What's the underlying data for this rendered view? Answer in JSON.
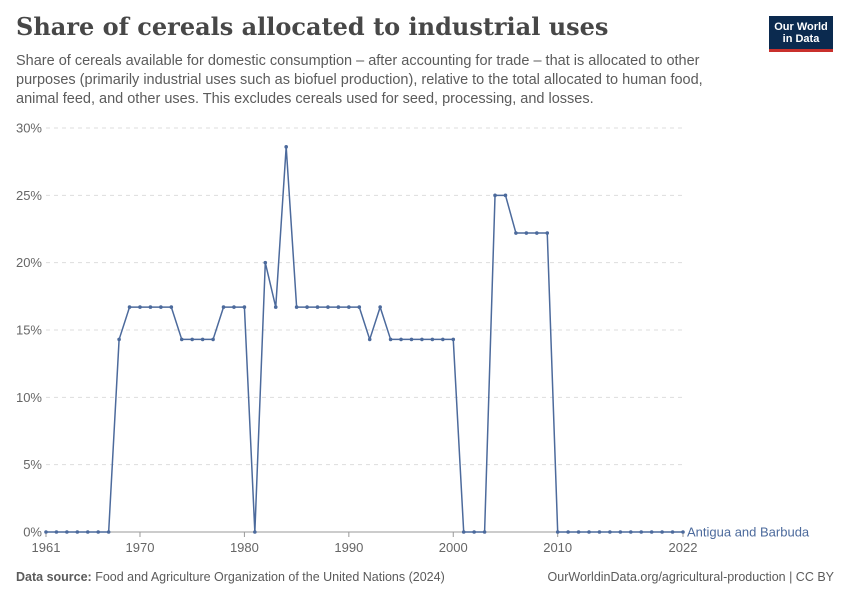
{
  "header": {
    "title": "Share of cereals allocated to industrial uses",
    "subtitle": "Share of cereals available for domestic consumption – after accounting for trade – that is allocated to other purposes (primarily industrial uses such as biofuel production), relative to the total allocated to human food, animal feed, and other uses. This excludes cereals used for seed, processing, and losses.",
    "logo_line1": "Our World",
    "logo_line2": "in Data"
  },
  "footer": {
    "source_label": "Data source:",
    "source_text": "Food and Agriculture Organization of the United Nations (2024)",
    "link_text": "OurWorldinData.org/agricultural-production | CC BY"
  },
  "colors": {
    "series": "#4c6a9c",
    "grid": "#dddddd",
    "logo_bg": "#0b2a4f",
    "logo_accent": "#c9302c"
  },
  "chart_data": {
    "type": "line",
    "title": "Share of cereals allocated to industrial uses",
    "xlabel": "",
    "ylabel": "",
    "xlim": [
      1961,
      2022
    ],
    "ylim": [
      0,
      30
    ],
    "yticks": [
      0,
      5,
      10,
      15,
      20,
      25,
      30
    ],
    "ytick_labels": [
      "0%",
      "5%",
      "10%",
      "15%",
      "20%",
      "25%",
      "30%"
    ],
    "xticks": [
      1961,
      1970,
      1980,
      1990,
      2000,
      2010,
      2022
    ],
    "xtick_labels": [
      "1961",
      "1970",
      "1980",
      "1990",
      "2000",
      "2010",
      "2022"
    ],
    "grid": true,
    "series": [
      {
        "name": "Antigua and Barbuda",
        "x": [
          1961,
          1962,
          1963,
          1964,
          1965,
          1966,
          1967,
          1968,
          1969,
          1970,
          1971,
          1972,
          1973,
          1974,
          1975,
          1976,
          1977,
          1978,
          1979,
          1980,
          1981,
          1982,
          1983,
          1984,
          1985,
          1986,
          1987,
          1988,
          1989,
          1990,
          1991,
          1992,
          1993,
          1994,
          1995,
          1996,
          1997,
          1998,
          1999,
          2000,
          2001,
          2002,
          2003,
          2004,
          2005,
          2006,
          2007,
          2008,
          2009,
          2010,
          2011,
          2012,
          2013,
          2014,
          2015,
          2016,
          2017,
          2018,
          2019,
          2020,
          2021,
          2022
        ],
        "y": [
          0,
          0,
          0,
          0,
          0,
          0,
          0,
          14.3,
          16.7,
          16.7,
          16.7,
          16.7,
          16.7,
          14.3,
          14.3,
          14.3,
          14.3,
          16.7,
          16.7,
          16.7,
          0,
          20,
          16.7,
          28.6,
          16.7,
          16.7,
          16.7,
          16.7,
          16.7,
          16.7,
          16.7,
          14.3,
          16.7,
          14.3,
          14.3,
          14.3,
          14.3,
          14.3,
          14.3,
          14.3,
          0,
          0,
          0,
          25,
          25,
          22.2,
          22.2,
          22.2,
          22.2,
          0,
          0,
          0,
          0,
          0,
          0,
          0,
          0,
          0,
          0,
          0,
          0,
          0
        ]
      }
    ]
  }
}
